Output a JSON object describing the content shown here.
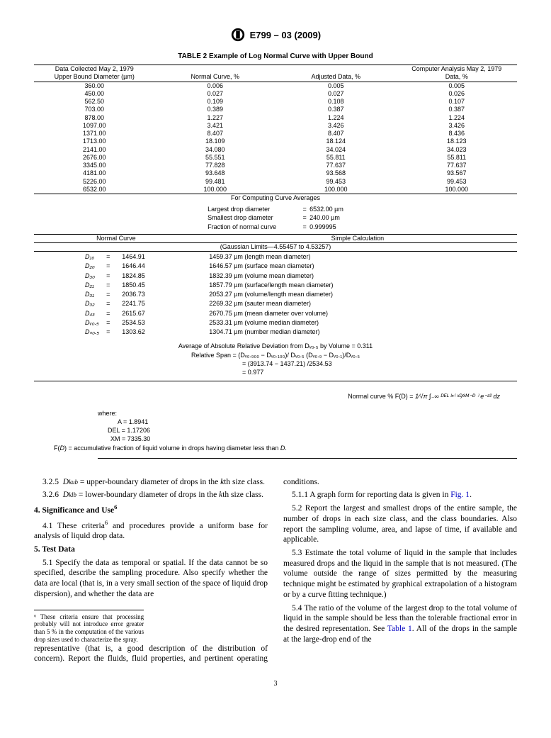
{
  "doc": {
    "standard_code": "E799 – 03 (2009)",
    "page_number": "3"
  },
  "table2": {
    "title": "TABLE 2 Example of Log Normal Curve with Upper Bound",
    "header_left_top": "Data Collected May 2, 1979",
    "header_right_top": "Computer Analysis May 2, 1979",
    "col1": "Upper Bound Diameter (µm)",
    "col2": "Normal Curve, %",
    "col3": "Adjusted Data, %",
    "col4": "Data, %",
    "rows": [
      {
        "d": "360.00",
        "c2": "0.006",
        "c3": "0.005",
        "c4": "0.005"
      },
      {
        "d": "450.00",
        "c2": "0.027",
        "c3": "0.027",
        "c4": "0.026"
      },
      {
        "d": "562.50",
        "c2": "0.109",
        "c3": "0.108",
        "c4": "0.107"
      },
      {
        "d": "703.00",
        "c2": "0.389",
        "c3": "0.387",
        "c4": "0.387"
      },
      {
        "d": "878.00",
        "c2": "1.227",
        "c3": "1.224",
        "c4": "1.224"
      },
      {
        "d": "1097.00",
        "c2": "3.421",
        "c3": "3.426",
        "c4": "3.426"
      },
      {
        "d": "1371.00",
        "c2": "8.407",
        "c3": "8.407",
        "c4": "8.436"
      },
      {
        "d": "1713.00",
        "c2": "18.109",
        "c3": "18.124",
        "c4": "18.123"
      },
      {
        "d": "2141.00",
        "c2": "34.080",
        "c3": "34.024",
        "c4": "34.023"
      },
      {
        "d": "2676.00",
        "c2": "55.551",
        "c3": "55.811",
        "c4": "55.811"
      },
      {
        "d": "3345.00",
        "c2": "77.828",
        "c3": "77.637",
        "c4": "77.637"
      },
      {
        "d": "4181.00",
        "c2": "93.648",
        "c3": "93.568",
        "c4": "93.567"
      },
      {
        "d": "5226.00",
        "c2": "99.481",
        "c3": "99.453",
        "c4": "99.453"
      },
      {
        "d": "6532.00",
        "c2": "100.000",
        "c3": "100.000",
        "c4": "100.000"
      }
    ],
    "avg_header": "For Computing Curve Averages",
    "curve_avg": {
      "ldd_label": "Largest drop diameter",
      "ldd_val": "6532.00 µm",
      "sdd_label": "Smallest drop diameter",
      "sdd_val": "240.00 µm",
      "frac_label": "Fraction of normal curve",
      "frac_val": "0.999995"
    },
    "section_heads": {
      "normal_curve": "Normal Curve",
      "simple_calc": "Simple Calculation",
      "gaussian": "(Gaussian Limits—4.55457 to 4.53257)"
    },
    "diameters": [
      {
        "sym": "D₁₀",
        "v": "1464.91",
        "r": "1459.37 µm (length mean diameter)"
      },
      {
        "sym": "D₂₀",
        "v": "1646.44",
        "r": "1646.57 µm (surface mean diameter)"
      },
      {
        "sym": "D₃₀",
        "v": "1824.85",
        "r": "1832.39 µm (volume mean diameter)"
      },
      {
        "sym": "D₂₁",
        "v": "1850.45",
        "r": "1857.79 µm (surface/length mean diameter)"
      },
      {
        "sym": "D₃₁",
        "v": "2036.73",
        "r": "2053.27 µm (volume/length mean diameter)"
      },
      {
        "sym": "D₃₂",
        "v": "2241.75",
        "r": "2269.32 µm (sauter mean diameter)"
      },
      {
        "sym": "D₄₃",
        "v": "2615.67",
        "r": "2670.75 µm (mean diameter over volume)"
      },
      {
        "sym": "Dᵥ₀.₅",
        "v": "2534.53",
        "r": "2533.31 µm (volume median diameter)"
      },
      {
        "sym": "Dₙ₀.₅",
        "v": "1303.62",
        "r": "1304.71 µm (number median diameter)"
      }
    ],
    "avg_dev": {
      "l1": "Average of Absolute Relative Deviation from Dᵥ₀.₅ by Volume = 0.311",
      "l2_lhs": "Relative Span = (Dᵥ₀.₉₀₀ − Dᵥ₀.₁₀₀)/ Dᵥ₀.₅ (Dᵥ₀.₉ − Dᵥ₀.₁)/Dᵥ₀.₅",
      "l3": "= (3913.74 − 1437.21) /2534.53",
      "l4": "= 0.977"
    },
    "formula_label": "Normal curve % F(D) = ",
    "formula_body": "1⁄√π  ∫₋∞  ᴰᴱᴸ ˡⁿ⁽ ˣᴰ⁄ˣᴹ⁻ᴰ ⁾  e⁻ᶻ²  dz",
    "vars": {
      "where": "where:",
      "a": "A = 1.8941",
      "del": "DEL = 1.17206",
      "xm": "XM = 7335.30",
      "fd": "F(D) = accumulative fraction of liquid volume in drops having diameter less than D."
    }
  },
  "body": {
    "p325": "3.2.5  Dₖᵤᵦ = upper-boundary diameter of drops in the kth size class.",
    "p326": "3.2.6  Dₖₗᵦ = lower-boundary diameter of drops in the kth size class.",
    "h4": "4. Significance and Use⁶",
    "p41": "4.1 These criteria⁶ and procedures provide a uniform base for analysis of liquid drop data.",
    "h5": "5. Test Data",
    "p51": "5.1 Specify the data as temporal or spatial. If the data cannot be so specified, describe the sampling procedure. Also specify whether the data are local (that is, in a very small section of the space of liquid drop dispersion), and whether the data are",
    "p51cont": "representative (that is, a good description of the distribution of concern). Report the fluids, fluid properties, and pertinent operating conditions.",
    "p511a": "5.1.1 A graph form for reporting data is given in ",
    "p511link": "Fig. 1",
    "p511b": ".",
    "p52": "5.2 Report the largest and smallest drops of the entire sample, the number of drops in each size class, and the class boundaries. Also report the sampling volume, area, and lapse of time, if available and applicable.",
    "p53": "5.3 Estimate the total volume of liquid in the sample that includes measured drops and the liquid in the sample that is not measured. (The volume outside the range of sizes permitted by the measuring technique might be estimated by graphical extrapolation of a histogram or by a curve fitting technique.)",
    "p54a": "5.4 The ratio of the volume of the largest drop to the total volume of liquid in the sample should be less than the tolerable fractional error in the desired representation. See ",
    "p54link": "Table 1",
    "p54b": ". All of the drops in the sample at the large-drop end of the"
  },
  "footnote": "⁶ These criteria ensure that processing probably will not introduce error greater than 5 % in the computation of the various drop sizes used to characterize the spray."
}
